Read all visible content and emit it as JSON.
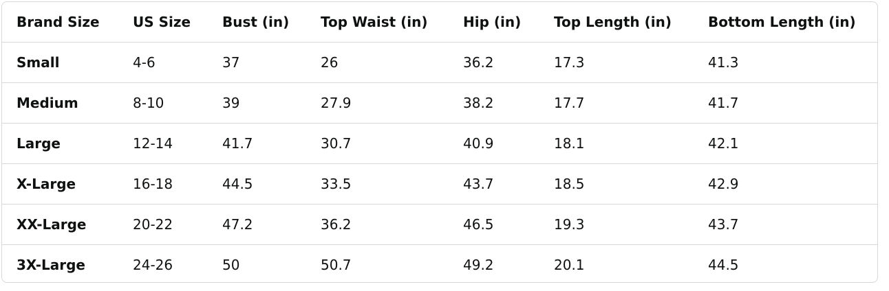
{
  "table": {
    "header": [
      "Brand Size",
      "US Size",
      "Bust (in)",
      "Top Waist (in)",
      "Hip (in)",
      "Top Length (in)",
      "Bottom Length (in)"
    ],
    "rows": [
      [
        "Small",
        "4-6",
        "37",
        "26",
        "36.2",
        "17.3",
        "41.3"
      ],
      [
        "Medium",
        "8-10",
        "39",
        "27.9",
        "38.2",
        "17.7",
        "41.7"
      ],
      [
        "Large",
        "12-14",
        "41.7",
        "30.7",
        "40.9",
        "18.1",
        "42.1"
      ],
      [
        "X-Large",
        "16-18",
        "44.5",
        "33.5",
        "43.7",
        "18.5",
        "42.9"
      ],
      [
        "XX-Large",
        "20-22",
        "47.2",
        "36.2",
        "46.5",
        "19.3",
        "43.7"
      ],
      [
        "3X-Large",
        "24-26",
        "50",
        "50.7",
        "49.2",
        "20.1",
        "44.5"
      ]
    ]
  }
}
